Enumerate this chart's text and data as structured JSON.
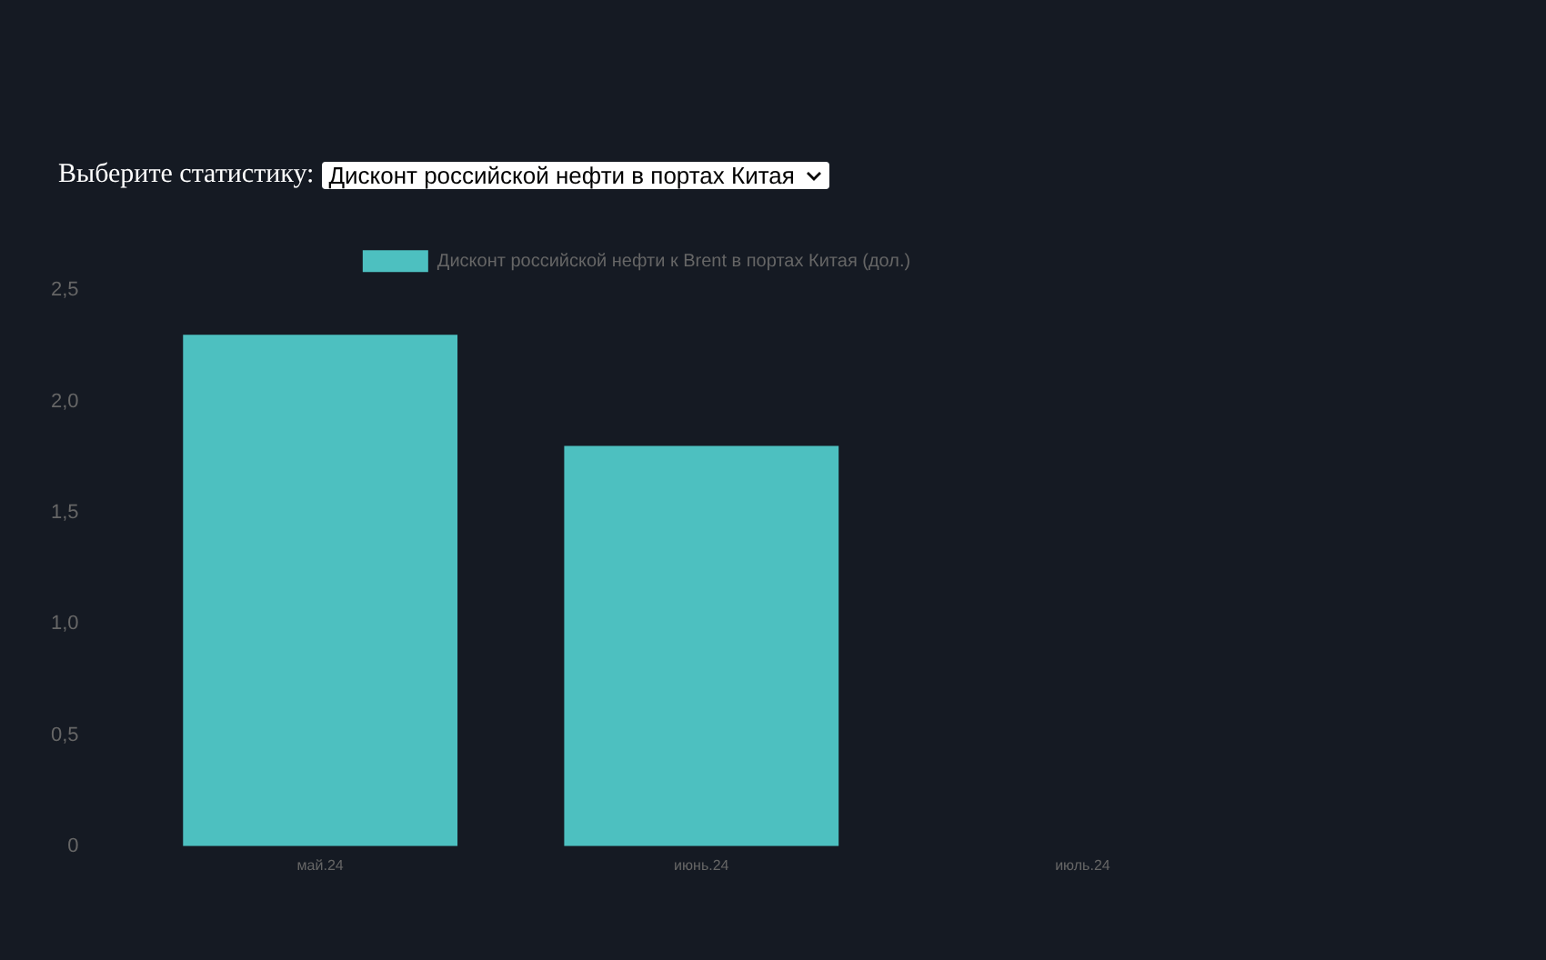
{
  "chart_data": {
    "type": "bar",
    "categories": [
      "май.24",
      "июнь.24",
      "июль.24"
    ],
    "series": [
      {
        "name": "Дисконт российской нефти к Brent в портах Китая (дол.)",
        "color": "#4dc0c0",
        "values": [
          2.3,
          1.8,
          null
        ]
      }
    ],
    "ylim": [
      0,
      2.5
    ],
    "yticks": [
      {
        "value": 0,
        "label": "0"
      },
      {
        "value": 0.5,
        "label": "0,5"
      },
      {
        "value": 1,
        "label": "1,0"
      },
      {
        "value": 1.5,
        "label": "1,5"
      },
      {
        "value": 2,
        "label": "2,0"
      },
      {
        "value": 2.5,
        "label": "2,5"
      }
    ],
    "grid": false,
    "legend": "top",
    "annotations": [
      "Выберите статистику:",
      "Дисконт российской нефти в портах Китая"
    ]
  }
}
